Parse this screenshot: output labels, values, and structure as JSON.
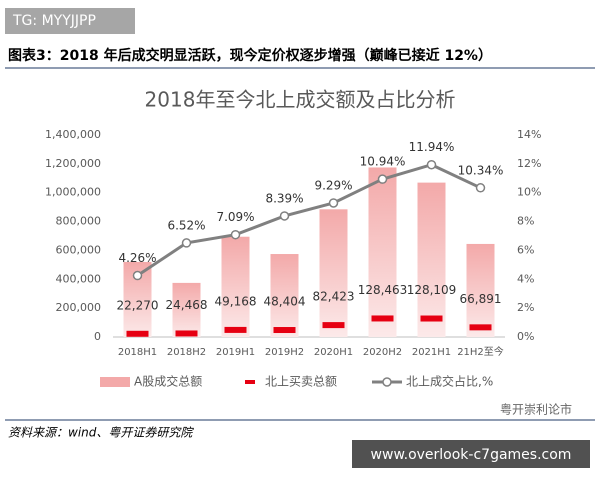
{
  "tag": "TG: MYYJJPP",
  "caption": "图表3：2018 年后成交明显活跃，现今定价权逐步增强（巅峰已接近 12%）",
  "source": "资料来源：wind、粤开证券研究院",
  "watermark": "粤开崇利论市",
  "site": "www.overlook-c7games.com",
  "chart_data": {
    "type": "bar",
    "title": "2018年至今北上成交额及占比分析",
    "categories": [
      "2018H1",
      "2018H2",
      "2019H1",
      "2019H2",
      "2020H1",
      "2020H2",
      "2021H1",
      "21H2至今"
    ],
    "series": [
      {
        "name": "A股成交总额",
        "type": "bar",
        "color": "#f3a9a9",
        "values": [
          520000,
          375000,
          695000,
          575000,
          885000,
          1175000,
          1070000,
          645000
        ]
      },
      {
        "name": "北上买卖总额",
        "type": "dash",
        "color": "#e60012",
        "values": [
          22270,
          24468,
          49168,
          48404,
          82423,
          128463,
          128109,
          66891
        ],
        "value_labels": [
          "22,270",
          "24,468",
          "49,168",
          "48,404",
          "82,423",
          "128,463",
          "128,109",
          "66,891"
        ]
      },
      {
        "name": "北上成交占比,%",
        "type": "line",
        "axis": "y2",
        "color": "#808080",
        "values": [
          4.26,
          6.52,
          7.09,
          8.39,
          9.29,
          10.94,
          11.94,
          10.34
        ],
        "value_labels": [
          "4.26%",
          "6.52%",
          "7.09%",
          "8.39%",
          "9.29%",
          "10.94%",
          "11.94%",
          "10.34%"
        ]
      }
    ],
    "ylim": [
      0,
      1400000
    ],
    "yticks": [
      0,
      {
        "value": 200000,
        "label": "200,000"
      },
      {
        "value": 400000,
        "label": "400,000"
      },
      {
        "value": 600000,
        "label": "600,000"
      },
      {
        "value": 800000,
        "label": "800,000"
      },
      {
        "value": 1000000,
        "label": "1,000,000"
      },
      {
        "value": 1200000,
        "label": "1,200,000"
      },
      {
        "value": 1400000,
        "label": "1,400,000"
      }
    ],
    "y2lim": [
      0,
      14
    ],
    "y2ticks": [
      {
        "value": 0,
        "label": "0%"
      },
      {
        "value": 2,
        "label": "2%"
      },
      {
        "value": 4,
        "label": "4%"
      },
      {
        "value": 6,
        "label": "6%"
      },
      {
        "value": 8,
        "label": "8%"
      },
      {
        "value": 10,
        "label": "10%"
      },
      {
        "value": 12,
        "label": "12%"
      },
      {
        "value": 14,
        "label": "14%"
      }
    ],
    "grid": false
  }
}
